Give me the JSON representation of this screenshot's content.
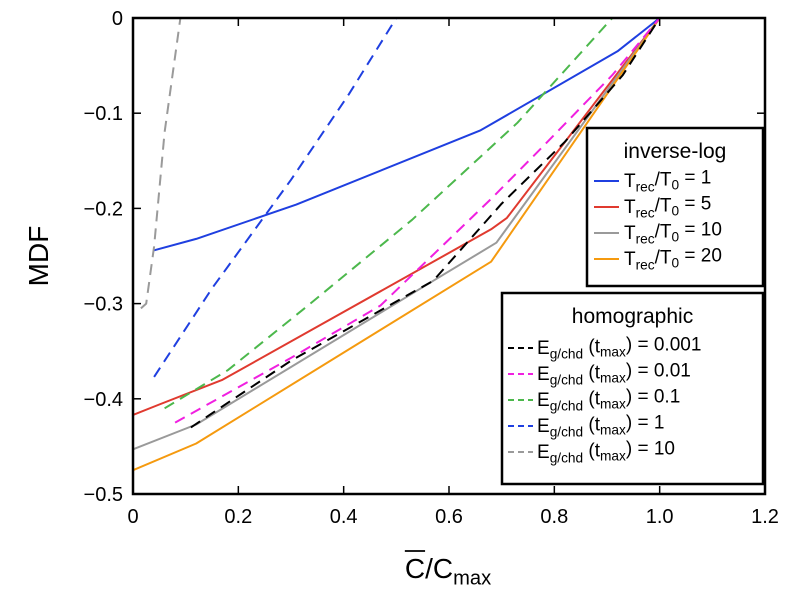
{
  "chart_data": {
    "type": "line",
    "title": "",
    "xlabel_main": "C",
    "xlabel_rest": "/C",
    "xlabel_sub": "max",
    "ylabel": "MDF",
    "xlim": [
      0,
      1.2
    ],
    "ylim": [
      -0.5,
      0
    ],
    "xticks": [
      0,
      0.2,
      0.4,
      0.6,
      0.8,
      1.0,
      1.2
    ],
    "xtick_labels": [
      "0",
      "0.2",
      "0.4",
      "0.6",
      "0.8",
      "1.0",
      "1.2"
    ],
    "yticks": [
      -0.5,
      -0.4,
      -0.3,
      -0.2,
      -0.1,
      0
    ],
    "ytick_labels": [
      "−0.5",
      "−0.4",
      "−0.3",
      "−0.2",
      "−0.1",
      "0"
    ],
    "grid": false,
    "legends": [
      {
        "title": "inverse-log",
        "position": "top-right",
        "entries": [
          {
            "pre": "T",
            "sub": "rec",
            "mid": "/T",
            "sub2": "0",
            "post": " = 1"
          },
          {
            "pre": "T",
            "sub": "rec",
            "mid": "/T",
            "sub2": "0",
            "post": " = 5"
          },
          {
            "pre": "T",
            "sub": "rec",
            "mid": "/T",
            "sub2": "0",
            "post": " = 10"
          },
          {
            "pre": "T",
            "sub": "rec",
            "mid": "/T",
            "sub2": "0",
            "post": " = 20"
          }
        ]
      },
      {
        "title": "homographic",
        "position": "bottom-right",
        "entries": [
          {
            "pre": "E",
            "sub": "g/chd",
            "mid": " (t",
            "sub2": "max",
            "post": ") = 0.001"
          },
          {
            "pre": "E",
            "sub": "g/chd",
            "mid": " (t",
            "sub2": "max",
            "post": ") = 0.01"
          },
          {
            "pre": "E",
            "sub": "g/chd",
            "mid": " (t",
            "sub2": "max",
            "post": ") = 0.1"
          },
          {
            "pre": "E",
            "sub": "g/chd",
            "mid": " (t",
            "sub2": "max",
            "post": ") = 1"
          },
          {
            "pre": "E",
            "sub": "g/chd",
            "mid": " (t",
            "sub2": "max",
            "post": ") = 10"
          }
        ]
      }
    ],
    "series": [
      {
        "name": "inverse-log T_rec/T0 = 1",
        "group": 0,
        "color": "#1f3fe0",
        "dash": false,
        "x": [
          0.04,
          0.12,
          0.31,
          0.66,
          0.92,
          1.0
        ],
        "y": [
          -0.244,
          -0.232,
          -0.196,
          -0.118,
          -0.035,
          0.0
        ]
      },
      {
        "name": "inverse-log T_rec/T0 = 5",
        "group": 0,
        "color": "#e03a2f",
        "dash": false,
        "x": [
          0.0,
          0.05,
          0.17,
          0.68,
          0.71,
          1.0
        ],
        "y": [
          -0.417,
          -0.406,
          -0.38,
          -0.222,
          -0.21,
          0.0
        ]
      },
      {
        "name": "inverse-log T_rec/T0 = 10",
        "group": 0,
        "color": "#9a9a9a",
        "dash": false,
        "x": [
          0.0,
          0.12,
          0.57,
          0.69,
          1.0
        ],
        "y": [
          -0.453,
          -0.427,
          -0.276,
          -0.236,
          0.0
        ]
      },
      {
        "name": "inverse-log T_rec/T0 = 20",
        "group": 0,
        "color": "#f59a0f",
        "dash": false,
        "x": [
          0.0,
          0.12,
          0.68,
          1.0
        ],
        "y": [
          -0.475,
          -0.447,
          -0.256,
          0.0
        ]
      },
      {
        "name": "homographic E(tmax) = 0.001",
        "group": 1,
        "color": "#000000",
        "dash": true,
        "x": [
          0.11,
          0.3,
          0.57,
          0.7,
          0.82,
          0.93,
          1.0
        ],
        "y": [
          -0.43,
          -0.36,
          -0.276,
          -0.195,
          -0.13,
          -0.06,
          0.0
        ]
      },
      {
        "name": "homographic E(tmax) = 0.01",
        "group": 1,
        "color": "#f020e0",
        "dash": true,
        "x": [
          0.08,
          0.3,
          0.47,
          0.68,
          0.78,
          0.91,
          1.0
        ],
        "y": [
          -0.425,
          -0.357,
          -0.302,
          -0.19,
          -0.134,
          -0.06,
          0.0
        ]
      },
      {
        "name": "homographic E(tmax) = 0.1",
        "group": 1,
        "color": "#4cb84c",
        "dash": true,
        "x": [
          0.06,
          0.18,
          0.33,
          0.53,
          0.73,
          0.91
        ],
        "y": [
          -0.41,
          -0.37,
          -0.303,
          -0.212,
          -0.11,
          0.0
        ]
      },
      {
        "name": "homographic E(tmax) = 1",
        "group": 1,
        "color": "#1f3fe0",
        "dash": true,
        "x": [
          0.04,
          0.15,
          0.3,
          0.41,
          0.5
        ],
        "y": [
          -0.377,
          -0.284,
          -0.17,
          -0.08,
          0.0
        ]
      },
      {
        "name": "homographic E(tmax) = 10",
        "group": 1,
        "color": "#9a9a9a",
        "dash": true,
        "x": [
          0.015,
          0.025,
          0.04,
          0.06,
          0.09
        ],
        "y": [
          -0.305,
          -0.3,
          -0.24,
          -0.12,
          0.0
        ]
      }
    ]
  }
}
